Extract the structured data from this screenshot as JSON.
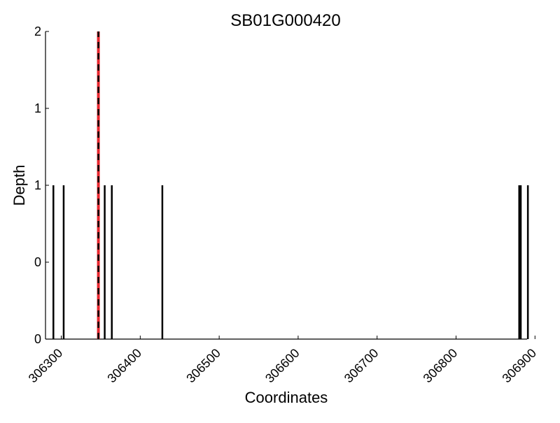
{
  "chart_data": {
    "type": "bar",
    "title": "SB01G000420",
    "xlabel": "Coordinates",
    "ylabel": "Depth",
    "xlim": [
      306280,
      306890
    ],
    "ylim": [
      0,
      2
    ],
    "x_ticks": [
      306300,
      306400,
      306500,
      306600,
      306700,
      306800,
      306900
    ],
    "y_ticks": [
      {
        "value": 0,
        "label": "0"
      },
      {
        "value": 0.5,
        "label": "0"
      },
      {
        "value": 1,
        "label": "1"
      },
      {
        "value": 1.5,
        "label": "1"
      },
      {
        "value": 2,
        "label": "2"
      }
    ],
    "bars": [
      {
        "x": 306290,
        "depth": 1
      },
      {
        "x": 306303,
        "depth": 1
      },
      {
        "x": 306347,
        "depth": 2
      },
      {
        "x": 306355,
        "depth": 1
      },
      {
        "x": 306364,
        "depth": 1
      },
      {
        "x": 306428,
        "depth": 1
      },
      {
        "x": 306880,
        "depth": 1
      },
      {
        "x": 306882,
        "depth": 1
      },
      {
        "x": 306891,
        "depth": 1
      }
    ],
    "marker": {
      "x": 306347,
      "style": "dashed",
      "colors": [
        "#e8262e",
        "#000000"
      ]
    },
    "bar_color": "#000000",
    "grid": false,
    "legend": "none"
  }
}
